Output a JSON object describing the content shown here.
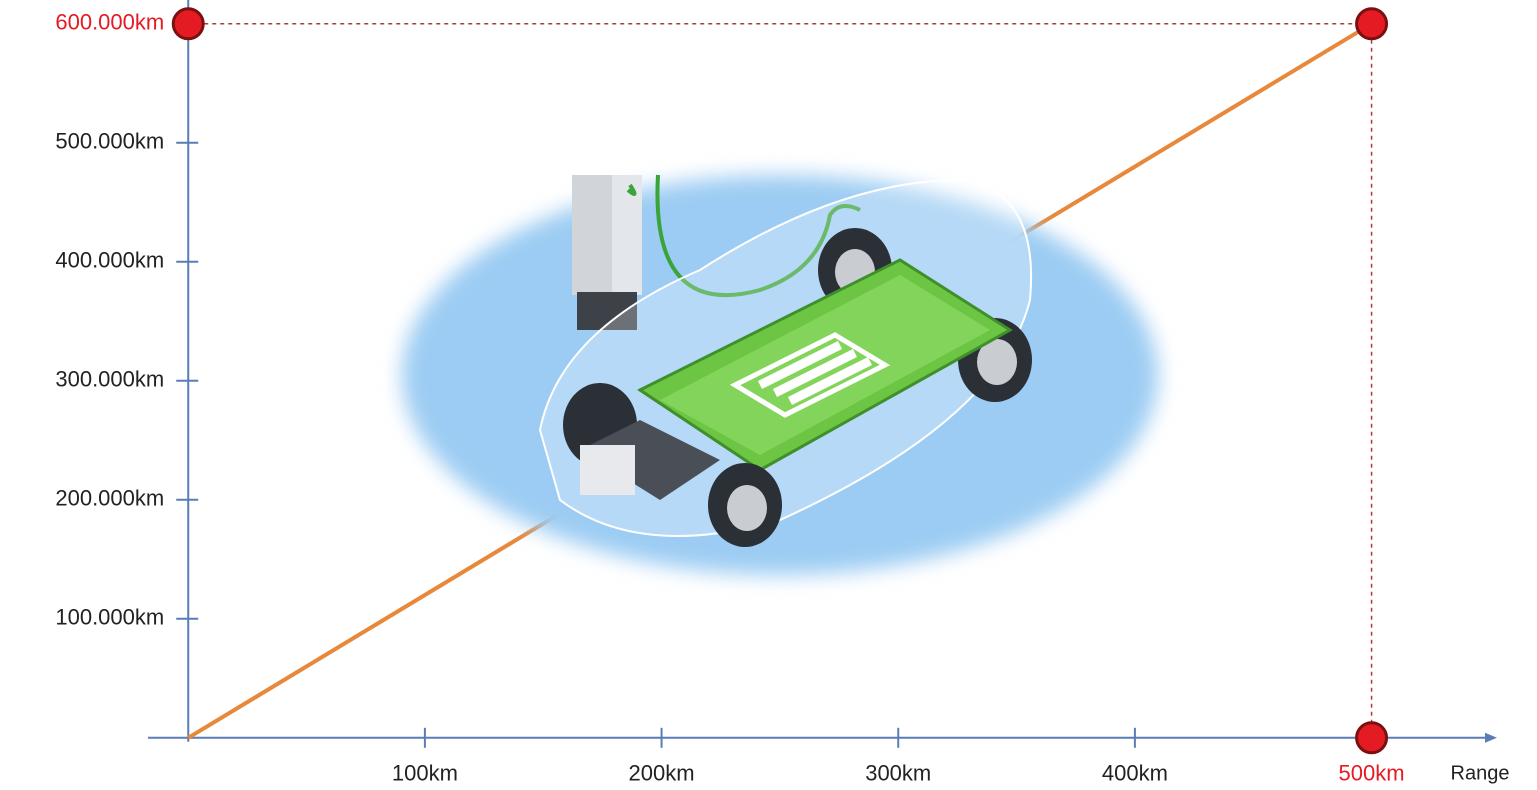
{
  "chart_data": {
    "type": "line",
    "x": [
      0,
      500
    ],
    "series": [
      {
        "color": "#e8883a",
        "values": [
          0,
          600000
        ]
      }
    ],
    "xlim": [
      -17,
      553
    ],
    "ylim": [
      0,
      620000
    ],
    "xticks": [
      {
        "value": 100,
        "label": "100km"
      },
      {
        "value": 200,
        "label": "200km"
      },
      {
        "value": 300,
        "label": "300km"
      },
      {
        "value": 400,
        "label": "400km"
      },
      {
        "value": 500,
        "label": "500km"
      }
    ],
    "yticks": [
      {
        "value": 100000,
        "label": "100.000km"
      },
      {
        "value": 200000,
        "label": "200.000km"
      },
      {
        "value": 300000,
        "label": "300.000km"
      },
      {
        "value": 400000,
        "label": "400.000km"
      },
      {
        "value": 500000,
        "label": "500.000km"
      },
      {
        "value": 600000,
        "label": "600.000km"
      }
    ],
    "x_label": "Range",
    "axis_color": "#5b7db5",
    "highlight_color": "#e51b23"
  }
}
